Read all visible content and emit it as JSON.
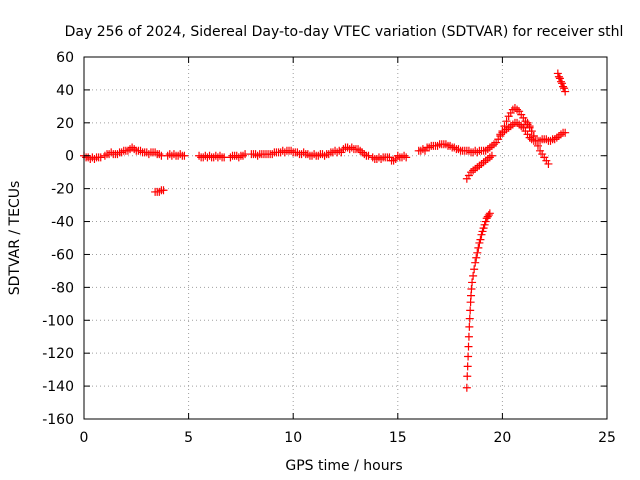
{
  "chart_data": {
    "type": "scatter",
    "title": "Day 256 of 2024, Sidereal Day-to-day VTEC variation (SDTVAR) for receiver sthl",
    "xlabel": "GPS time / hours",
    "ylabel": "SDTVAR / TECUs",
    "xlim": [
      0,
      25
    ],
    "ylim": [
      -160,
      60
    ],
    "xticks": [
      0,
      5,
      10,
      15,
      20,
      25
    ],
    "yticks": [
      -160,
      -140,
      -120,
      -100,
      -80,
      -60,
      -40,
      -20,
      0,
      20,
      40,
      60
    ],
    "grid": true,
    "marker": "+",
    "color": "#ff0000",
    "series": [
      {
        "name": "SDTVAR",
        "points": [
          [
            0.0,
            0
          ],
          [
            0.1,
            -1
          ],
          [
            0.2,
            -1
          ],
          [
            0.3,
            -2
          ],
          [
            0.4,
            -1
          ],
          [
            0.5,
            -2
          ],
          [
            0.6,
            -1
          ],
          [
            0.7,
            -1
          ],
          [
            0.8,
            -1
          ],
          [
            1.0,
            0
          ],
          [
            1.1,
            1
          ],
          [
            1.2,
            1
          ],
          [
            1.3,
            2
          ],
          [
            1.4,
            1
          ],
          [
            1.5,
            1
          ],
          [
            1.6,
            1
          ],
          [
            1.7,
            2
          ],
          [
            1.8,
            2
          ],
          [
            1.9,
            3
          ],
          [
            2.0,
            3
          ],
          [
            2.1,
            3
          ],
          [
            2.2,
            4
          ],
          [
            2.3,
            5
          ],
          [
            2.4,
            4
          ],
          [
            2.5,
            3
          ],
          [
            2.6,
            3
          ],
          [
            2.7,
            3
          ],
          [
            2.8,
            2
          ],
          [
            2.9,
            2
          ],
          [
            3.0,
            2
          ],
          [
            3.1,
            1
          ],
          [
            3.2,
            2
          ],
          [
            3.3,
            2
          ],
          [
            3.4,
            2
          ],
          [
            3.5,
            1
          ],
          [
            3.6,
            1
          ],
          [
            3.7,
            0
          ],
          [
            3.4,
            -22
          ],
          [
            3.5,
            -22
          ],
          [
            3.6,
            -22
          ],
          [
            3.7,
            -21
          ],
          [
            3.8,
            -21
          ],
          [
            4.0,
            0
          ],
          [
            4.1,
            1
          ],
          [
            4.2,
            0
          ],
          [
            4.3,
            1
          ],
          [
            4.4,
            0
          ],
          [
            4.5,
            0
          ],
          [
            4.6,
            1
          ],
          [
            4.7,
            0
          ],
          [
            4.8,
            0
          ],
          [
            5.5,
            0
          ],
          [
            5.6,
            -1
          ],
          [
            5.7,
            -1
          ],
          [
            5.8,
            0
          ],
          [
            5.9,
            -1
          ],
          [
            6.0,
            0
          ],
          [
            6.1,
            -1
          ],
          [
            6.2,
            -1
          ],
          [
            6.3,
            0
          ],
          [
            6.4,
            -1
          ],
          [
            6.5,
            0
          ],
          [
            6.6,
            -1
          ],
          [
            6.7,
            -1
          ],
          [
            7.0,
            -1
          ],
          [
            7.1,
            0
          ],
          [
            7.2,
            0
          ],
          [
            7.3,
            0
          ],
          [
            7.4,
            -1
          ],
          [
            7.5,
            0
          ],
          [
            7.6,
            0
          ],
          [
            7.7,
            1
          ],
          [
            8.0,
            1
          ],
          [
            8.1,
            1
          ],
          [
            8.2,
            1
          ],
          [
            8.3,
            0
          ],
          [
            8.4,
            1
          ],
          [
            8.5,
            1
          ],
          [
            8.6,
            1
          ],
          [
            8.7,
            1
          ],
          [
            8.8,
            1
          ],
          [
            8.9,
            1
          ],
          [
            9.0,
            1
          ],
          [
            9.1,
            2
          ],
          [
            9.2,
            2
          ],
          [
            9.3,
            2
          ],
          [
            9.4,
            2
          ],
          [
            9.5,
            3
          ],
          [
            9.6,
            2
          ],
          [
            9.7,
            3
          ],
          [
            9.8,
            3
          ],
          [
            9.9,
            3
          ],
          [
            10.0,
            2
          ],
          [
            10.1,
            2
          ],
          [
            10.2,
            2
          ],
          [
            10.3,
            1
          ],
          [
            10.4,
            1
          ],
          [
            10.5,
            2
          ],
          [
            10.6,
            1
          ],
          [
            10.7,
            1
          ],
          [
            10.8,
            0
          ],
          [
            10.9,
            0
          ],
          [
            11.0,
            1
          ],
          [
            11.1,
            0
          ],
          [
            11.2,
            0
          ],
          [
            11.3,
            1
          ],
          [
            11.4,
            1
          ],
          [
            11.5,
            0
          ],
          [
            11.6,
            1
          ],
          [
            11.7,
            1
          ],
          [
            11.8,
            2
          ],
          [
            11.9,
            2
          ],
          [
            12.0,
            3
          ],
          [
            12.1,
            2
          ],
          [
            12.2,
            3
          ],
          [
            12.3,
            2
          ],
          [
            12.4,
            4
          ],
          [
            12.5,
            5
          ],
          [
            12.6,
            5
          ],
          [
            12.7,
            4
          ],
          [
            12.8,
            5
          ],
          [
            12.9,
            4
          ],
          [
            13.0,
            4
          ],
          [
            13.1,
            4
          ],
          [
            13.2,
            3
          ],
          [
            13.3,
            2
          ],
          [
            13.4,
            1
          ],
          [
            13.5,
            0
          ],
          [
            13.6,
            0
          ],
          [
            13.8,
            -1
          ],
          [
            13.9,
            -2
          ],
          [
            14.0,
            -2
          ],
          [
            14.1,
            -1
          ],
          [
            14.2,
            -2
          ],
          [
            14.3,
            -1
          ],
          [
            14.4,
            -1
          ],
          [
            14.5,
            -1
          ],
          [
            14.6,
            -1
          ],
          [
            14.7,
            -3
          ],
          [
            14.8,
            -3
          ],
          [
            14.9,
            -2
          ],
          [
            15.0,
            0
          ],
          [
            15.1,
            -1
          ],
          [
            15.2,
            -1
          ],
          [
            15.3,
            0
          ],
          [
            15.4,
            -1
          ],
          [
            16.0,
            3
          ],
          [
            16.1,
            3
          ],
          [
            16.2,
            4
          ],
          [
            16.3,
            3
          ],
          [
            16.4,
            5
          ],
          [
            16.5,
            5
          ],
          [
            16.6,
            6
          ],
          [
            16.7,
            6
          ],
          [
            16.8,
            6
          ],
          [
            16.9,
            6
          ],
          [
            17.0,
            7
          ],
          [
            17.1,
            7
          ],
          [
            17.2,
            7
          ],
          [
            17.3,
            7
          ],
          [
            17.4,
            6
          ],
          [
            17.5,
            6
          ],
          [
            17.6,
            5
          ],
          [
            17.7,
            5
          ],
          [
            17.8,
            4
          ],
          [
            17.9,
            4
          ],
          [
            18.0,
            3
          ],
          [
            18.1,
            3
          ],
          [
            18.2,
            3
          ],
          [
            18.3,
            3
          ],
          [
            18.4,
            3
          ],
          [
            18.5,
            2
          ],
          [
            18.6,
            2
          ],
          [
            18.7,
            3
          ],
          [
            18.8,
            2
          ],
          [
            18.9,
            3
          ],
          [
            19.0,
            3
          ],
          [
            19.1,
            3
          ],
          [
            19.2,
            3
          ],
          [
            19.3,
            4
          ],
          [
            19.4,
            5
          ],
          [
            19.5,
            6
          ],
          [
            18.3,
            -14
          ],
          [
            18.4,
            -12
          ],
          [
            18.5,
            -10
          ],
          [
            18.6,
            -9
          ],
          [
            18.7,
            -8
          ],
          [
            18.8,
            -7
          ],
          [
            18.9,
            -6
          ],
          [
            19.0,
            -5
          ],
          [
            19.1,
            -4
          ],
          [
            19.2,
            -3
          ],
          [
            19.3,
            -2
          ],
          [
            19.4,
            -1
          ],
          [
            19.5,
            0
          ],
          [
            18.3,
            -141
          ],
          [
            18.32,
            -134
          ],
          [
            18.34,
            -128
          ],
          [
            18.36,
            -122
          ],
          [
            18.38,
            -116
          ],
          [
            18.4,
            -110
          ],
          [
            18.42,
            -104
          ],
          [
            18.44,
            -99
          ],
          [
            18.46,
            -94
          ],
          [
            18.48,
            -89
          ],
          [
            18.5,
            -85
          ],
          [
            18.52,
            -81
          ],
          [
            18.55,
            -77
          ],
          [
            18.6,
            -73
          ],
          [
            18.65,
            -69
          ],
          [
            18.7,
            -65
          ],
          [
            18.75,
            -62
          ],
          [
            18.8,
            -59
          ],
          [
            18.85,
            -56
          ],
          [
            18.9,
            -53
          ],
          [
            18.95,
            -51
          ],
          [
            19.0,
            -48
          ],
          [
            19.05,
            -46
          ],
          [
            19.1,
            -44
          ],
          [
            19.15,
            -42
          ],
          [
            19.2,
            -40
          ],
          [
            19.25,
            -38
          ],
          [
            19.3,
            -37
          ],
          [
            19.35,
            -36
          ],
          [
            19.4,
            -35
          ],
          [
            19.6,
            7
          ],
          [
            19.7,
            8
          ],
          [
            19.8,
            10
          ],
          [
            19.9,
            12
          ],
          [
            20.0,
            15
          ],
          [
            20.1,
            18
          ],
          [
            20.2,
            21
          ],
          [
            20.3,
            24
          ],
          [
            20.4,
            26
          ],
          [
            20.5,
            28
          ],
          [
            20.6,
            29
          ],
          [
            20.7,
            28
          ],
          [
            20.8,
            27
          ],
          [
            20.9,
            25
          ],
          [
            21.0,
            23
          ],
          [
            21.1,
            21
          ],
          [
            21.2,
            19
          ],
          [
            21.3,
            17
          ],
          [
            21.4,
            15
          ],
          [
            21.5,
            12
          ],
          [
            19.9,
            13
          ],
          [
            20.0,
            14
          ],
          [
            20.1,
            15
          ],
          [
            20.2,
            16
          ],
          [
            20.3,
            17
          ],
          [
            20.4,
            18
          ],
          [
            20.5,
            19
          ],
          [
            20.6,
            20
          ],
          [
            20.7,
            20
          ],
          [
            20.8,
            19
          ],
          [
            20.9,
            18
          ],
          [
            21.0,
            17
          ],
          [
            21.1,
            15
          ],
          [
            21.2,
            13
          ],
          [
            21.3,
            11
          ],
          [
            21.4,
            10
          ],
          [
            21.5,
            9
          ],
          [
            21.6,
            9
          ],
          [
            21.7,
            9
          ],
          [
            21.8,
            9
          ],
          [
            21.9,
            10
          ],
          [
            22.0,
            10
          ],
          [
            22.1,
            10
          ],
          [
            22.2,
            9
          ],
          [
            22.3,
            9
          ],
          [
            22.4,
            10
          ],
          [
            22.5,
            10
          ],
          [
            22.6,
            11
          ],
          [
            22.7,
            12
          ],
          [
            22.8,
            13
          ],
          [
            22.9,
            14
          ],
          [
            23.0,
            14
          ],
          [
            21.2,
            20
          ],
          [
            21.3,
            18
          ],
          [
            21.4,
            15
          ],
          [
            21.5,
            12
          ],
          [
            21.6,
            9
          ],
          [
            21.7,
            6
          ],
          [
            21.8,
            3
          ],
          [
            21.9,
            1
          ],
          [
            22.0,
            -1
          ],
          [
            22.1,
            -3
          ],
          [
            22.2,
            -5
          ],
          [
            22.65,
            50
          ],
          [
            22.7,
            48
          ],
          [
            22.75,
            47
          ],
          [
            22.8,
            45
          ],
          [
            22.85,
            44
          ],
          [
            22.9,
            42
          ],
          [
            22.95,
            41
          ],
          [
            23.0,
            39
          ]
        ]
      }
    ]
  }
}
